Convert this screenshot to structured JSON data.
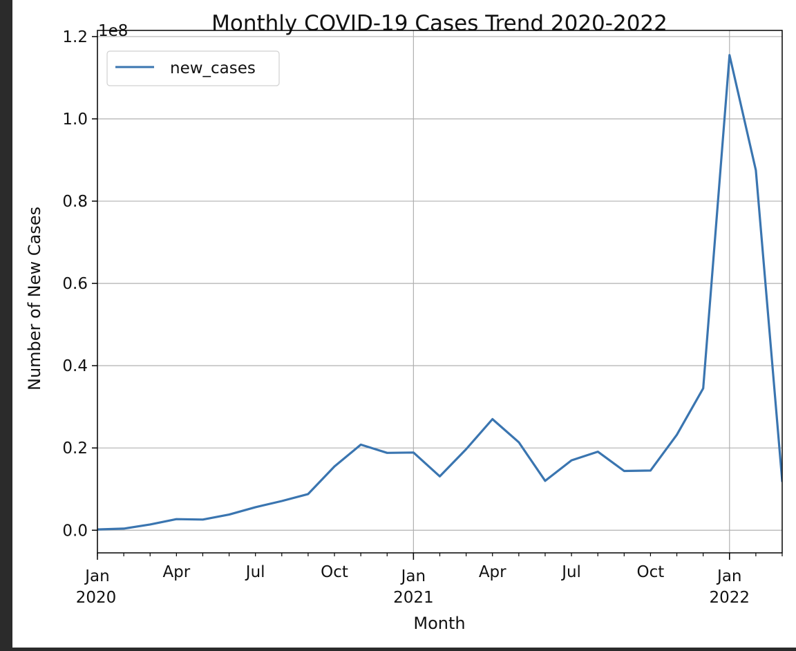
{
  "chart_data": {
    "type": "line",
    "title": "Monthly COVID-19 Cases Trend 2020-2022",
    "xlabel": "Month",
    "ylabel": "Number of New Cases",
    "y_offset_text": "1e8",
    "x_range": [
      "2020-01",
      "2022-03"
    ],
    "ylim": [
      -0.055,
      1.215
    ],
    "y_scale": 100000000,
    "y_ticks": [
      0.0,
      0.2,
      0.4,
      0.6,
      0.8,
      1.0,
      1.2
    ],
    "y_tick_labels": [
      "0.0",
      "0.2",
      "0.4",
      "0.6",
      "0.8",
      "1.0",
      "1.2"
    ],
    "x_ticks": [
      {
        "month": 0,
        "label": "Jan",
        "year_label": "2020"
      },
      {
        "month": 3,
        "label": "Apr",
        "year_label": ""
      },
      {
        "month": 6,
        "label": "Jul",
        "year_label": ""
      },
      {
        "month": 9,
        "label": "Oct",
        "year_label": ""
      },
      {
        "month": 12,
        "label": "Jan",
        "year_label": "2021"
      },
      {
        "month": 15,
        "label": "Apr",
        "year_label": ""
      },
      {
        "month": 18,
        "label": "Jul",
        "year_label": ""
      },
      {
        "month": 21,
        "label": "Oct",
        "year_label": ""
      },
      {
        "month": 24,
        "label": "Jan",
        "year_label": "2022"
      }
    ],
    "grid": true,
    "legend_position": "upper-left",
    "series": [
      {
        "name": "new_cases",
        "color": "#3a75b0",
        "x": [
          "2020-01",
          "2020-02",
          "2020-03",
          "2020-04",
          "2020-05",
          "2020-06",
          "2020-07",
          "2020-08",
          "2020-09",
          "2020-10",
          "2020-11",
          "2020-12",
          "2021-01",
          "2021-02",
          "2021-03",
          "2021-04",
          "2021-05",
          "2021-06",
          "2021-07",
          "2021-08",
          "2021-09",
          "2021-10",
          "2021-11",
          "2021-12",
          "2022-01",
          "2022-02",
          "2022-03"
        ],
        "values": [
          0.002,
          0.004,
          0.014,
          0.027,
          0.026,
          0.038,
          0.056,
          0.071,
          0.088,
          0.155,
          0.208,
          0.188,
          0.189,
          0.131,
          0.197,
          0.27,
          0.214,
          0.12,
          0.17,
          0.191,
          0.144,
          0.145,
          0.232,
          0.345,
          1.155,
          0.875,
          0.12
        ]
      }
    ]
  }
}
